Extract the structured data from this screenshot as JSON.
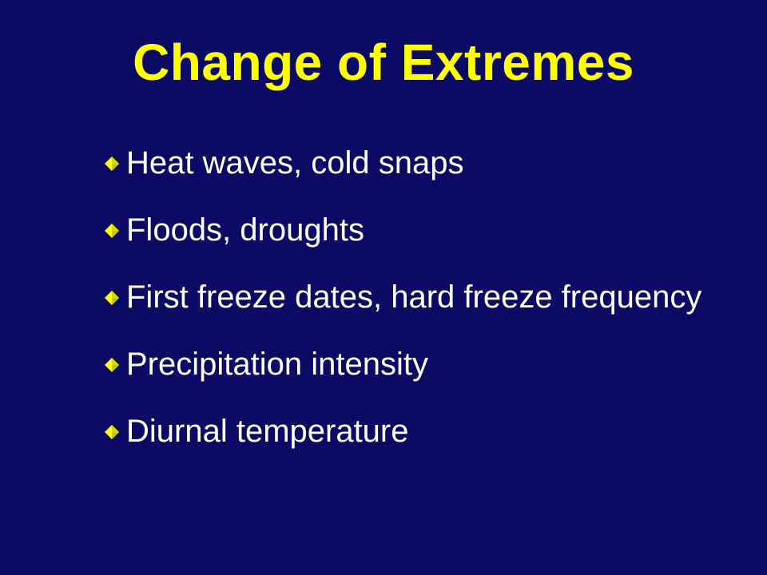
{
  "slide": {
    "title": "Change of Extremes",
    "bullets": [
      {
        "text": "Heat waves, cold snaps"
      },
      {
        "text": "Floods, droughts"
      },
      {
        "text": "First freeze dates, hard freeze frequency"
      },
      {
        "text": "Precipitation intensity"
      },
      {
        "text": "Diurnal temperature"
      }
    ],
    "bullet_icon": "diamond-bullet-icon",
    "colors": {
      "background": "#0b0b66",
      "title": "#ffff00",
      "text": "#ffffff",
      "bullet": "#ffff00"
    }
  }
}
